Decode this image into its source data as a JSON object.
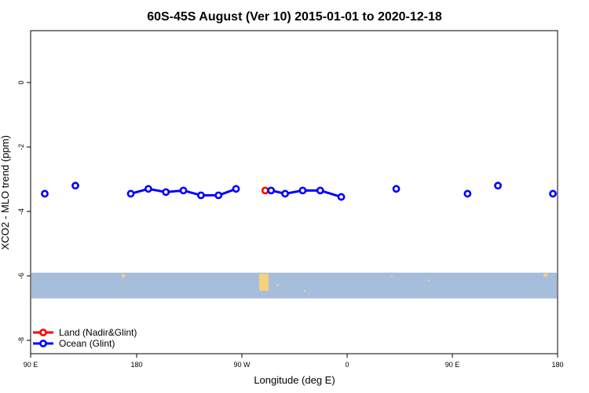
{
  "chart_data": {
    "type": "line",
    "title": "60S-45S August (Ver 10)   2015-01-01 to 2020-12-18",
    "xlabel": "Longitude (deg E)",
    "ylabel": "XCO2 - MLO trend (ppm)",
    "xlim": [
      90,
      450
    ],
    "ylim": [
      -8.3,
      1.5
    ],
    "grid": false,
    "x_ticks": [
      {
        "value": 90,
        "label": "90 E"
      },
      {
        "value": 180,
        "label": "180"
      },
      {
        "value": 270,
        "label": "90 W"
      },
      {
        "value": 360,
        "label": "0"
      },
      {
        "value": 450,
        "label": "90 E"
      },
      {
        "value": 540,
        "label": "180"
      }
    ],
    "y_ticks": [
      {
        "value": 0,
        "label": "0"
      },
      {
        "value": -2,
        "label": "-2"
      },
      {
        "value": -4,
        "label": "-4"
      },
      {
        "value": -6,
        "label": "-6"
      },
      {
        "value": -8,
        "label": "-8"
      }
    ],
    "band": {
      "y_from": -6.7,
      "y_to": -5.9,
      "color": "#a6bddb"
    },
    "legend_position": "bottom-left",
    "series": [
      {
        "name": "Land (Nadir&Glint)",
        "color": "#ff0000",
        "segments": [
          [
            {
              "x": 290,
              "y": -3.35
            }
          ]
        ]
      },
      {
        "name": "Ocean (Glint)",
        "color": "#0000ff",
        "segments": [
          [
            {
              "x": 102,
              "y": -3.45
            }
          ],
          [
            {
              "x": 128,
              "y": -3.2
            }
          ],
          [
            {
              "x": 175,
              "y": -3.45
            },
            {
              "x": 190,
              "y": -3.3
            },
            {
              "x": 205,
              "y": -3.4
            },
            {
              "x": 220,
              "y": -3.35
            },
            {
              "x": 235,
              "y": -3.5
            },
            {
              "x": 250,
              "y": -3.5
            },
            {
              "x": 265,
              "y": -3.3
            }
          ],
          [
            {
              "x": 295,
              "y": -3.35
            },
            {
              "x": 307,
              "y": -3.45
            },
            {
              "x": 322,
              "y": -3.35
            },
            {
              "x": 337,
              "y": -3.35
            },
            {
              "x": 355,
              "y": -3.55
            }
          ],
          [
            {
              "x": 402,
              "y": -3.3
            }
          ],
          [
            {
              "x": 463,
              "y": -3.45
            }
          ],
          [
            {
              "x": 489,
              "y": -3.2
            }
          ],
          [
            {
              "x": 536,
              "y": -3.45
            }
          ]
        ]
      }
    ]
  }
}
